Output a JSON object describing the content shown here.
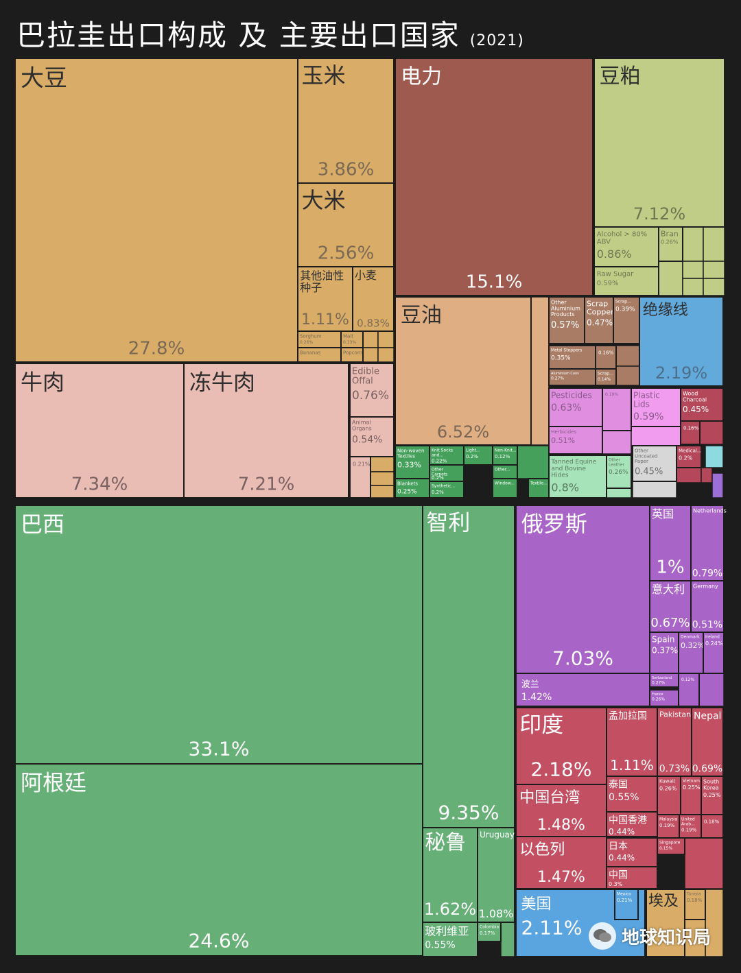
{
  "title": "巴拉圭出口构成 及 主要出口国家",
  "year": "(2021)",
  "watermark": "地球知识局",
  "chart_data": [
    {
      "type": "treemap",
      "name": "products",
      "items": [
        {
          "label": "大豆",
          "value": "27.8%",
          "color": "#d9ac67",
          "labelColor": "#2e2e2e",
          "valueColor": "#7a6a55"
        },
        {
          "label": "玉米",
          "value": "3.86%",
          "color": "#d9ac67",
          "labelColor": "#2e2e2e",
          "valueColor": "#7a6a55"
        },
        {
          "label": "大米",
          "value": "2.56%",
          "color": "#d9ac67",
          "labelColor": "#2e2e2e",
          "valueColor": "#7a6a55"
        },
        {
          "label": "其他油性种子",
          "value": "1.11%",
          "color": "#d9ac67",
          "labelColor": "#2e2e2e",
          "valueColor": "#7a6a55"
        },
        {
          "label": "小麦",
          "value": "0.83%",
          "color": "#d9ac67",
          "labelColor": "#2e2e2e",
          "valueColor": "#7a6a55"
        },
        {
          "label": "Sorghum",
          "value": "0.26%",
          "color": "#d9ac67",
          "labelColor": "#7a6a55",
          "valueColor": "#7a6a55"
        },
        {
          "label": "Malt",
          "value": "0.13%",
          "color": "#d9ac67",
          "labelColor": "#7a6a55",
          "valueColor": "#7a6a55"
        },
        {
          "label": "Bananas",
          "value": "",
          "color": "#d9ac67",
          "labelColor": "#7a6a55",
          "valueColor": "#7a6a55"
        },
        {
          "label": "Popcorn",
          "value": "",
          "color": "#d9ac67",
          "labelColor": "#7a6a55",
          "valueColor": "#7a6a55"
        },
        {
          "label": "牛肉",
          "value": "7.34%",
          "color": "#e9bcb4",
          "labelColor": "#2e2e2e",
          "valueColor": "#7a6262"
        },
        {
          "label": "冻牛肉",
          "value": "7.21%",
          "color": "#e9bcb4",
          "labelColor": "#2e2e2e",
          "valueColor": "#7a6262"
        },
        {
          "label": "Edible Offal",
          "value": "0.76%",
          "color": "#e9bcb4",
          "labelColor": "#7a6262",
          "valueColor": "#7a6262"
        },
        {
          "label": "Animal Organs",
          "value": "0.54%",
          "color": "#e9bcb4",
          "labelColor": "#7a6262",
          "valueColor": "#7a6262"
        },
        {
          "label": "",
          "value": "0.21%",
          "color": "#e9bcb4",
          "labelColor": "#7a6262",
          "valueColor": "#7a6262"
        },
        {
          "label": "电力",
          "value": "15.1%",
          "color": "#9e5a4f",
          "labelColor": "#ffffff",
          "valueColor": "#ffffff"
        },
        {
          "label": "豆粕",
          "value": "7.12%",
          "color": "#c0cd87",
          "labelColor": "#2e2e2e",
          "valueColor": "#6f7550"
        },
        {
          "label": "Alcohol > 80% ABV",
          "value": "0.86%",
          "color": "#c0cd87",
          "labelColor": "#6f7550",
          "valueColor": "#6f7550"
        },
        {
          "label": "Raw Sugar",
          "value": "0.59%",
          "color": "#c0cd87",
          "labelColor": "#6f7550",
          "valueColor": "#6f7550"
        },
        {
          "label": "Bran",
          "value": "0.26%",
          "color": "#c0cd87",
          "labelColor": "#6f7550",
          "valueColor": "#6f7550"
        },
        {
          "label": "豆油",
          "value": "6.52%",
          "color": "#dfae83",
          "labelColor": "#2e2e2e",
          "valueColor": "#7a6655"
        },
        {
          "label": "Other Aluminium Products",
          "value": "0.57%",
          "color": "#a97d65",
          "labelColor": "#ffffff",
          "valueColor": "#ffffff"
        },
        {
          "label": "Scrap Copper",
          "value": "0.47%",
          "color": "#a97d65",
          "labelColor": "#ffffff",
          "valueColor": "#ffffff"
        },
        {
          "label": "Scrap...",
          "value": "0.39%",
          "color": "#a97d65",
          "labelColor": "#ffffff",
          "valueColor": "#ffffff"
        },
        {
          "label": "Metal Stoppers",
          "value": "0.35%",
          "color": "#a97d65",
          "labelColor": "#ffffff",
          "valueColor": "#ffffff"
        },
        {
          "label": "",
          "value": "0.16%",
          "color": "#a97d65",
          "labelColor": "#ffffff",
          "valueColor": "#ffffff"
        },
        {
          "label": "Aluminium Cans",
          "value": "0.27%",
          "color": "#a97d65",
          "labelColor": "#ffffff",
          "valueColor": "#ffffff"
        },
        {
          "label": "Scrap...",
          "value": "0.14%",
          "color": "#a97d65",
          "labelColor": "#ffffff",
          "valueColor": "#ffffff"
        },
        {
          "label": "绝缘线",
          "value": "2.19%",
          "color": "#62aadc",
          "labelColor": "#2e2e2e",
          "valueColor": "#4d6e8a"
        },
        {
          "label": "Pesticides",
          "value": "0.63%",
          "color": "#e08fe0",
          "labelColor": "#8a5a8a",
          "valueColor": "#8a5a8a"
        },
        {
          "label": "Herbicides",
          "value": "0.51%",
          "color": "#e08fe0",
          "labelColor": "#8a5a8a",
          "valueColor": "#8a5a8a"
        },
        {
          "label": "",
          "value": "0.19%",
          "color": "#e08fe0",
          "labelColor": "#8a5a8a",
          "valueColor": "#8a5a8a"
        },
        {
          "label": "Plastic Lids",
          "value": "0.59%",
          "color": "#f29cf0",
          "labelColor": "#8a5a8a",
          "valueColor": "#8a5a8a"
        },
        {
          "label": "Wood Charcoal",
          "value": "0.45%",
          "color": "#b5475b",
          "labelColor": "#ffffff",
          "valueColor": "#ffffff"
        },
        {
          "label": "",
          "value": "0.16%",
          "color": "#b5475b",
          "labelColor": "#ffffff",
          "valueColor": "#ffffff"
        },
        {
          "label": "Medical...",
          "value": "0.2%",
          "color": "#b5475b",
          "labelColor": "#ffffff",
          "valueColor": "#ffffff"
        },
        {
          "label": "Other Uncoated Paper",
          "value": "0.45%",
          "color": "#d7d7d7",
          "labelColor": "#6e6e6e",
          "valueColor": "#6e6e6e"
        },
        {
          "label": "Tanned Equine and Bovine Hides",
          "value": "0.8%",
          "color": "#a6e3b8",
          "labelColor": "#5a7a62",
          "valueColor": "#5a7a62"
        },
        {
          "label": "Other Leather",
          "value": "0.26%",
          "color": "#a6e3b8",
          "labelColor": "#5a7a62",
          "valueColor": "#5a7a62"
        },
        {
          "label": "Non-woven Textiles",
          "value": "0.33%",
          "color": "#45a05c",
          "labelColor": "#ffffff",
          "valueColor": "#ffffff"
        },
        {
          "label": "Knit Socks and...",
          "value": "0.22%",
          "color": "#45a05c",
          "labelColor": "#ffffff",
          "valueColor": "#ffffff"
        },
        {
          "label": "Light...",
          "value": "0.2%",
          "color": "#45a05c",
          "labelColor": "#ffffff",
          "valueColor": "#ffffff"
        },
        {
          "label": "Non-Knit...",
          "value": "0.12%",
          "color": "#45a05c",
          "labelColor": "#ffffff",
          "valueColor": "#ffffff"
        },
        {
          "label": "Other Carpets",
          "value": "0.2%",
          "color": "#45a05c",
          "labelColor": "#ffffff",
          "valueColor": "#ffffff"
        },
        {
          "label": "Other...",
          "value": "",
          "color": "#45a05c",
          "labelColor": "#ffffff",
          "valueColor": "#ffffff"
        },
        {
          "label": "Blankets",
          "value": "0.25%",
          "color": "#45a05c",
          "labelColor": "#ffffff",
          "valueColor": "#ffffff"
        },
        {
          "label": "Synthetic...",
          "value": "0.2%",
          "color": "#45a05c",
          "labelColor": "#ffffff",
          "valueColor": "#ffffff"
        },
        {
          "label": "Window...",
          "value": "",
          "color": "#45a05c",
          "labelColor": "#ffffff",
          "valueColor": "#ffffff"
        },
        {
          "label": "Textile...",
          "value": "",
          "color": "#45a05c",
          "labelColor": "#ffffff",
          "valueColor": "#ffffff"
        }
      ]
    },
    {
      "type": "treemap",
      "name": "destinations",
      "items": [
        {
          "label": "巴西",
          "value": "33.1%",
          "color": "#66b078",
          "labelColor": "#ffffff",
          "valueColor": "#ffffff"
        },
        {
          "label": "阿根廷",
          "value": "24.6%",
          "color": "#66b078",
          "labelColor": "#ffffff",
          "valueColor": "#ffffff"
        },
        {
          "label": "智利",
          "value": "9.35%",
          "color": "#66b078",
          "labelColor": "#ffffff",
          "valueColor": "#ffffff"
        },
        {
          "label": "秘鲁",
          "value": "1.62%",
          "color": "#66b078",
          "labelColor": "#ffffff",
          "valueColor": "#ffffff"
        },
        {
          "label": "Uruguay",
          "value": "1.08%",
          "color": "#66b078",
          "labelColor": "#ffffff",
          "valueColor": "#ffffff"
        },
        {
          "label": "玻利维亚",
          "value": "0.55%",
          "color": "#66b078",
          "labelColor": "#ffffff",
          "valueColor": "#ffffff"
        },
        {
          "label": "Colombia",
          "value": "0.17%",
          "color": "#66b078",
          "labelColor": "#ffffff",
          "valueColor": "#ffffff"
        },
        {
          "label": "俄罗斯",
          "value": "7.03%",
          "color": "#a964c8",
          "labelColor": "#ffffff",
          "valueColor": "#ffffff"
        },
        {
          "label": "英国",
          "value": "1%",
          "color": "#a964c8",
          "labelColor": "#ffffff",
          "valueColor": "#ffffff"
        },
        {
          "label": "Netherlands",
          "value": "0.79%",
          "color": "#a964c8",
          "labelColor": "#ffffff",
          "valueColor": "#ffffff"
        },
        {
          "label": "意大利",
          "value": "0.67%",
          "color": "#a964c8",
          "labelColor": "#ffffff",
          "valueColor": "#ffffff"
        },
        {
          "label": "Germany",
          "value": "0.51%",
          "color": "#a964c8",
          "labelColor": "#ffffff",
          "valueColor": "#ffffff"
        },
        {
          "label": "Spain",
          "value": "0.37%",
          "color": "#a964c8",
          "labelColor": "#ffffff",
          "valueColor": "#ffffff"
        },
        {
          "label": "Denmark",
          "value": "0.32%",
          "color": "#a964c8",
          "labelColor": "#ffffff",
          "valueColor": "#ffffff"
        },
        {
          "label": "Ireland",
          "value": "0.24%",
          "color": "#a964c8",
          "labelColor": "#ffffff",
          "valueColor": "#ffffff"
        },
        {
          "label": "Switzerland",
          "value": "0.27%",
          "color": "#a964c8",
          "labelColor": "#ffffff",
          "valueColor": "#ffffff"
        },
        {
          "label": "France",
          "value": "0.26%",
          "color": "#a964c8",
          "labelColor": "#ffffff",
          "valueColor": "#ffffff"
        },
        {
          "label": "",
          "value": "0.12%",
          "color": "#a964c8",
          "labelColor": "#ffffff",
          "valueColor": "#ffffff"
        },
        {
          "label": "波兰",
          "value": "1.42%",
          "color": "#a964c8",
          "labelColor": "#ffffff",
          "valueColor": "#ffffff"
        },
        {
          "label": "印度",
          "value": "2.18%",
          "color": "#c24f62",
          "labelColor": "#ffffff",
          "valueColor": "#ffffff"
        },
        {
          "label": "孟加拉国",
          "value": "1.11%",
          "color": "#c24f62",
          "labelColor": "#ffffff",
          "valueColor": "#ffffff"
        },
        {
          "label": "Pakistan",
          "value": "0.73%",
          "color": "#c24f62",
          "labelColor": "#ffffff",
          "valueColor": "#ffffff"
        },
        {
          "label": "Nepal",
          "value": "0.69%",
          "color": "#c24f62",
          "labelColor": "#ffffff",
          "valueColor": "#ffffff"
        },
        {
          "label": "中国台湾",
          "value": "1.48%",
          "color": "#c24f62",
          "labelColor": "#ffffff",
          "valueColor": "#ffffff"
        },
        {
          "label": "泰国",
          "value": "0.55%",
          "color": "#c24f62",
          "labelColor": "#ffffff",
          "valueColor": "#ffffff"
        },
        {
          "label": "中国香港",
          "value": "0.44%",
          "color": "#c24f62",
          "labelColor": "#ffffff",
          "valueColor": "#ffffff"
        },
        {
          "label": "Kuwait",
          "value": "0.26%",
          "color": "#c24f62",
          "labelColor": "#ffffff",
          "valueColor": "#ffffff"
        },
        {
          "label": "Vietnam",
          "value": "0.25%",
          "color": "#c24f62",
          "labelColor": "#ffffff",
          "valueColor": "#ffffff"
        },
        {
          "label": "South Korea",
          "value": "0.25%",
          "color": "#c24f62",
          "labelColor": "#ffffff",
          "valueColor": "#ffffff"
        },
        {
          "label": "Malaysia",
          "value": "0.19%",
          "color": "#c24f62",
          "labelColor": "#ffffff",
          "valueColor": "#ffffff"
        },
        {
          "label": "United Arab...",
          "value": "0.19%",
          "color": "#c24f62",
          "labelColor": "#ffffff",
          "valueColor": "#ffffff"
        },
        {
          "label": "",
          "value": "0.18%",
          "color": "#c24f62",
          "labelColor": "#ffffff",
          "valueColor": "#ffffff"
        },
        {
          "label": "以色列",
          "value": "1.47%",
          "color": "#c24f62",
          "labelColor": "#ffffff",
          "valueColor": "#ffffff"
        },
        {
          "label": "日本",
          "value": "0.44%",
          "color": "#c24f62",
          "labelColor": "#ffffff",
          "valueColor": "#ffffff"
        },
        {
          "label": "中国",
          "value": "0.3%",
          "color": "#c24f62",
          "labelColor": "#ffffff",
          "valueColor": "#ffffff"
        },
        {
          "label": "Singapore",
          "value": "0.15%",
          "color": "#c24f62",
          "labelColor": "#ffffff",
          "valueColor": "#ffffff"
        },
        {
          "label": "美国",
          "value": "2.11%",
          "color": "#5aa5e0",
          "labelColor": "#ffffff",
          "valueColor": "#ffffff"
        },
        {
          "label": "Mexico",
          "value": "0.21%",
          "color": "#5aa5e0",
          "labelColor": "#ffffff",
          "valueColor": "#ffffff"
        },
        {
          "label": "埃及",
          "value": "",
          "color": "#d9ac67",
          "labelColor": "#2e2e2e",
          "valueColor": "#7a6a55"
        },
        {
          "label": "Tunisia",
          "value": "0.18%",
          "color": "#d9ac67",
          "labelColor": "#7a6a55",
          "valueColor": "#7a6a55"
        }
      ]
    }
  ]
}
